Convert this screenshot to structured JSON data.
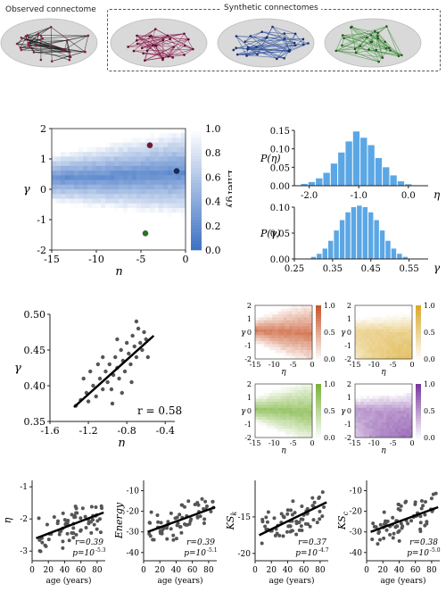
{
  "top": {
    "observed_label": "Observed connectome",
    "synthetic_label": "Synthetic connectomes",
    "brains": [
      {
        "name": "observed",
        "edge_color": "#1a1a1a",
        "node_color": "#8b1a3a"
      },
      {
        "name": "synthetic-1",
        "edge_color": "#8b1a4a",
        "node_color": "#5a0f2e"
      },
      {
        "name": "synthetic-2",
        "edge_color": "#2c4f9e",
        "node_color": "#18306e"
      },
      {
        "name": "synthetic-3",
        "edge_color": "#3f8f3a",
        "node_color": "#1f5a1c"
      }
    ]
  },
  "chart_data": [
    {
      "id": "energy-landscape",
      "type": "heatmap",
      "xlabel": "η",
      "ylabel": "γ",
      "xlim": [
        -15,
        0
      ],
      "ylim": [
        -2,
        2
      ],
      "xticks": [
        "-15",
        "-10",
        "-5",
        "0"
      ],
      "yticks": [
        "2",
        "1",
        "0",
        "-1",
        "-2"
      ],
      "colorbar_label": "Energy",
      "colorbar_ticks": [
        "1.0",
        "0.8",
        "0.6",
        "0.4",
        "0.2",
        "0.0"
      ],
      "colorbar_range": [
        0,
        1
      ],
      "colormap": [
        "#ffffff",
        "#3a6fc2"
      ],
      "points": [
        {
          "x": -4,
          "y": 1.45,
          "color": "#6e1a30"
        },
        {
          "x": -1,
          "y": 0.6,
          "color": "#1c2b55"
        },
        {
          "x": -4.5,
          "y": -1.45,
          "color": "#2e6f2a"
        }
      ]
    },
    {
      "id": "p-eta",
      "type": "bar",
      "ylabel": "P(η)",
      "xlabel": "η",
      "xlim": [
        -2.3,
        0.4
      ],
      "ylim": [
        0,
        0.15
      ],
      "xticks": [
        "-2.0",
        "-1.0",
        "0.0"
      ],
      "yticks": [
        "0.15",
        "0.10",
        "0.05",
        "0.00"
      ],
      "color": "#5ba7e5",
      "x": [
        -2.1,
        -1.95,
        -1.8,
        -1.65,
        -1.5,
        -1.35,
        -1.2,
        -1.05,
        -0.9,
        -0.75,
        -0.6,
        -0.45,
        -0.3,
        -0.15,
        0.0
      ],
      "values": [
        0.005,
        0.01,
        0.02,
        0.035,
        0.06,
        0.09,
        0.12,
        0.147,
        0.13,
        0.11,
        0.075,
        0.05,
        0.028,
        0.012,
        0.004
      ]
    },
    {
      "id": "p-gamma",
      "type": "bar",
      "ylabel": "P(γ)",
      "xlabel": "γ",
      "xlim": [
        0.25,
        0.6
      ],
      "ylim": [
        0,
        0.1
      ],
      "xticks": [
        "0.25",
        "0.35",
        "0.45",
        "0.55"
      ],
      "yticks": [
        "0.10",
        "0.05",
        "0.00"
      ],
      "color": "#5ba7e5",
      "x": [
        0.3,
        0.315,
        0.33,
        0.345,
        0.36,
        0.375,
        0.39,
        0.405,
        0.42,
        0.435,
        0.45,
        0.465,
        0.48,
        0.495,
        0.51,
        0.525,
        0.54
      ],
      "values": [
        0.004,
        0.01,
        0.02,
        0.035,
        0.055,
        0.075,
        0.09,
        0.1,
        0.103,
        0.1,
        0.09,
        0.075,
        0.055,
        0.035,
        0.02,
        0.01,
        0.004
      ]
    },
    {
      "id": "gamma-vs-eta",
      "type": "scatter",
      "xlabel": "η",
      "ylabel": "γ",
      "xlim": [
        -1.6,
        -0.3
      ],
      "ylim": [
        0.35,
        0.5
      ],
      "xticks": [
        "-1.6",
        "-1.2",
        "-0.8",
        "-0.4"
      ],
      "yticks": [
        "0.50",
        "0.45",
        "0.40",
        "0.35"
      ],
      "annotation": "r = 0.58",
      "fit": {
        "x": [
          -1.35,
          -0.52
        ],
        "y": [
          0.37,
          0.47
        ]
      },
      "points": [
        [
          -1.33,
          0.372
        ],
        [
          -1.28,
          0.38
        ],
        [
          -1.22,
          0.39
        ],
        [
          -1.2,
          0.378
        ],
        [
          -1.15,
          0.4
        ],
        [
          -1.12,
          0.385
        ],
        [
          -1.08,
          0.41
        ],
        [
          -1.05,
          0.395
        ],
        [
          -1.02,
          0.42
        ],
        [
          -1.0,
          0.405
        ],
        [
          -0.98,
          0.43
        ],
        [
          -0.96,
          0.395
        ],
        [
          -0.94,
          0.415
        ],
        [
          -0.92,
          0.44
        ],
        [
          -0.9,
          0.425
        ],
        [
          -0.88,
          0.41
        ],
        [
          -0.86,
          0.45
        ],
        [
          -0.84,
          0.435
        ],
        [
          -0.82,
          0.42
        ],
        [
          -0.8,
          0.46
        ],
        [
          -0.78,
          0.445
        ],
        [
          -0.76,
          0.43
        ],
        [
          -0.74,
          0.47
        ],
        [
          -0.72,
          0.455
        ],
        [
          -0.7,
          0.44
        ],
        [
          -0.68,
          0.48
        ],
        [
          -0.66,
          0.46
        ],
        [
          -0.64,
          0.45
        ],
        [
          -0.62,
          0.475
        ],
        [
          -0.6,
          0.465
        ],
        [
          -0.58,
          0.44
        ],
        [
          -1.1,
          0.43
        ],
        [
          -1.25,
          0.41
        ],
        [
          -0.95,
          0.375
        ],
        [
          -0.85,
          0.39
        ],
        [
          -1.18,
          0.42
        ],
        [
          -0.7,
          0.49
        ],
        [
          -0.9,
          0.465
        ],
        [
          -1.05,
          0.44
        ],
        [
          -0.75,
          0.405
        ]
      ]
    },
    {
      "id": "mini-heatmaps",
      "type": "heatmap",
      "panels": [
        {
          "color": "#c8552a",
          "cbar_ticks": [
            "1.0",
            "0.5",
            "0.0"
          ]
        },
        {
          "color": "#d9a92a",
          "cbar_ticks": [
            "1.0",
            "0.5",
            "0.0"
          ]
        },
        {
          "color": "#7ab33a",
          "cbar_ticks": [
            "1.0",
            "0.5",
            "0.0"
          ]
        },
        {
          "color": "#7a3aa0",
          "cbar_ticks": [
            "1.0",
            "0.5",
            "0.0"
          ]
        }
      ],
      "xlabel": "η",
      "ylabel": "γ",
      "xticks": [
        "-15",
        "-10",
        "-5",
        "0"
      ],
      "yticks": [
        "2",
        "1",
        "0",
        "-1",
        "-2"
      ]
    },
    {
      "id": "age-eta",
      "type": "scatter",
      "ylabel": "η",
      "xlabel": "age (years)",
      "xlim": [
        0,
        90
      ],
      "ylim": [
        -3.3,
        -0.8
      ],
      "xticks": [
        "0",
        "20",
        "40",
        "60",
        "80"
      ],
      "yticks": [
        "-1",
        "-2",
        "-3"
      ],
      "r_text": "r=0.39",
      "p_text": "p=10",
      "p_exp": "-5.3",
      "fit": {
        "x": [
          5,
          88
        ],
        "y": [
          -2.6,
          -1.8
        ]
      }
    },
    {
      "id": "age-energy",
      "type": "scatter",
      "ylabel": "Energy",
      "xlabel": "age (years)",
      "xlim": [
        0,
        90
      ],
      "ylim": [
        -44,
        -5
      ],
      "xticks": [
        "0",
        "20",
        "40",
        "60",
        "80"
      ],
      "yticks": [
        "-10",
        "-20",
        "-30",
        "-40"
      ],
      "r_text": "r=0.39",
      "p_text": "p=10",
      "p_exp": "-5.1",
      "fit": {
        "x": [
          5,
          88
        ],
        "y": [
          -30,
          -18
        ]
      }
    },
    {
      "id": "age-ksk",
      "type": "scatter",
      "ylabel": "KS",
      "ylabel_sub": "k",
      "xlabel": "age (years)",
      "xlim": [
        0,
        90
      ],
      "ylim": [
        -21,
        -10
      ],
      "xticks": [
        "0",
        "20",
        "40",
        "60",
        "80"
      ],
      "yticks": [
        "-15",
        "-20"
      ],
      "r_text": "r=0.37",
      "p_text": "p=10",
      "p_exp": "-4.7",
      "fit": {
        "x": [
          5,
          88
        ],
        "y": [
          -17.5,
          -13
        ]
      }
    },
    {
      "id": "age-ksc",
      "type": "scatter",
      "ylabel": "KS",
      "ylabel_sub": "c",
      "xlabel": "age (years)",
      "xlim": [
        0,
        90
      ],
      "ylim": [
        -44,
        -5
      ],
      "xticks": [
        "0",
        "20",
        "40",
        "60",
        "80"
      ],
      "yticks": [
        "-10",
        "-20",
        "-30",
        "-40"
      ],
      "r_text": "r=0.38",
      "p_text": "p=10",
      "p_exp": "-5.0",
      "fit": {
        "x": [
          5,
          88
        ],
        "y": [
          -30,
          -18
        ]
      }
    }
  ]
}
